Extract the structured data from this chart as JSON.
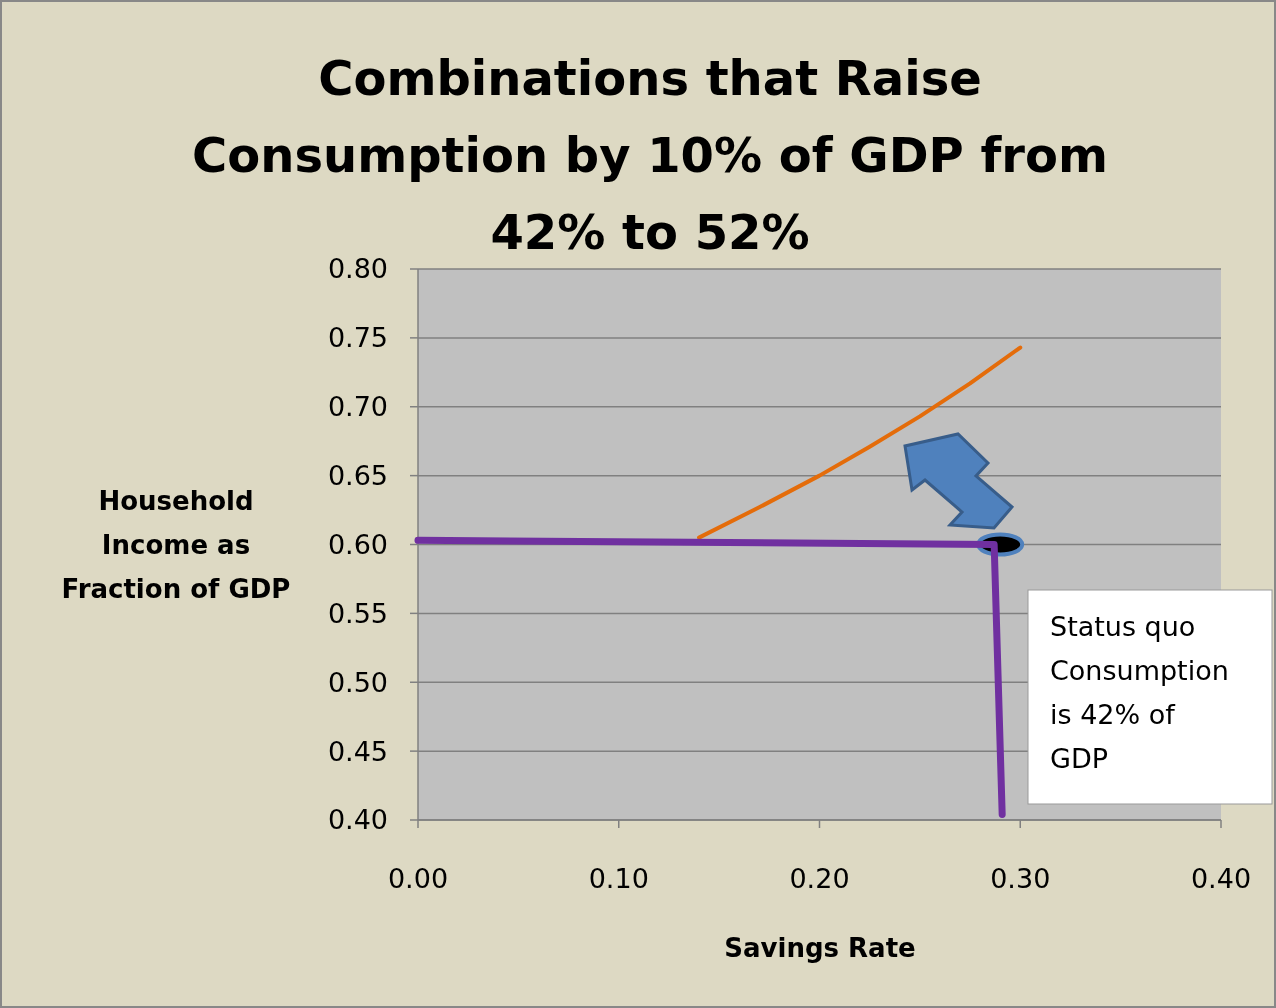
{
  "chart_data": {
    "type": "line",
    "title": "Combinations that Raise Consumption by 10% of GDP from 42% to 52%",
    "xlabel": "Savings Rate",
    "ylabel": "Household Income as Fraction of GDP",
    "xlim": [
      0,
      0.4
    ],
    "ylim": [
      0.4,
      0.8
    ],
    "xticks": [
      {
        "value": 0,
        "label": "0.00"
      },
      {
        "value": 0.1,
        "label": "0.10"
      },
      {
        "value": 0.2,
        "label": "0.20"
      },
      {
        "value": 0.3,
        "label": "0.30"
      },
      {
        "value": 0.4,
        "label": "0.40"
      }
    ],
    "yticks": [
      {
        "value": 0.4,
        "label": "0.40"
      },
      {
        "value": 0.45,
        "label": "0.45"
      },
      {
        "value": 0.5,
        "label": "0.50"
      },
      {
        "value": 0.55,
        "label": "0.55"
      },
      {
        "value": 0.6,
        "label": "0.60"
      },
      {
        "value": 0.65,
        "label": "0.65"
      },
      {
        "value": 0.7,
        "label": "0.70"
      },
      {
        "value": 0.75,
        "label": "0.75"
      },
      {
        "value": 0.8,
        "label": "0.80"
      }
    ],
    "grid": "y",
    "series": [
      {
        "color": "#e46c0a",
        "x": [
          0.14,
          0.17,
          0.2,
          0.225,
          0.25,
          0.275,
          0.3
        ],
        "values": [
          0.605,
          0.627,
          0.65,
          0.671,
          0.693,
          0.717,
          0.743
        ]
      },
      {
        "color": "#7030a0",
        "x": [
          0,
          0.287,
          0.291
        ],
        "values": [
          0.603,
          0.6,
          0.404
        ]
      },
      {
        "type": "scatter",
        "color": "#000000",
        "marker": "circle",
        "x": [
          0.29
        ],
        "values": [
          0.6
        ]
      }
    ],
    "annotations": [
      "Status quo Consumption is 42% of GDP"
    ]
  }
}
